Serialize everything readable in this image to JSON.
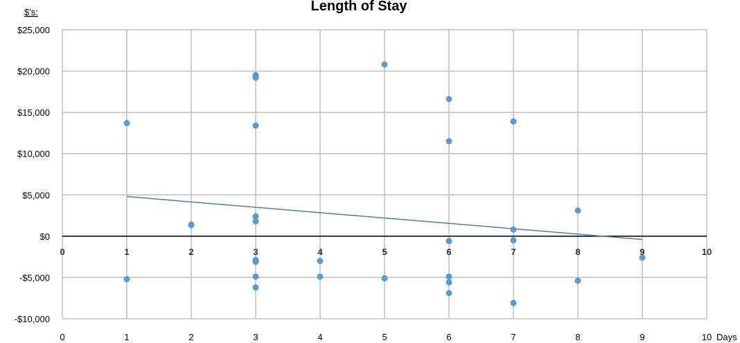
{
  "chart_data": {
    "type": "scatter",
    "title": "Length of Stay",
    "ylabel": "$'s:",
    "xlabel": "Days",
    "xlim": [
      0,
      10
    ],
    "ylim": [
      -10000,
      25000
    ],
    "x_ticks": [
      "0",
      "1",
      "2",
      "3",
      "4",
      "5",
      "6",
      "7",
      "8",
      "9",
      "10"
    ],
    "x_mid_ticks": [
      "0",
      "1",
      "2",
      "3",
      "4",
      "5",
      "6",
      "7",
      "8",
      "9",
      "10"
    ],
    "y_ticks": [
      {
        "value": 25000,
        "label": "$25,000"
      },
      {
        "value": 20000,
        "label": "$20,000"
      },
      {
        "value": 15000,
        "label": "$15,000"
      },
      {
        "value": 10000,
        "label": "$10,000"
      },
      {
        "value": 5000,
        "label": "$5,000"
      },
      {
        "value": 0,
        "label": "$0"
      },
      {
        "value": -5000,
        "label": "-$5,000"
      },
      {
        "value": -10000,
        "label": "-$10,000"
      }
    ],
    "grid": true,
    "series": [
      {
        "color": "#5b9bd5",
        "points": [
          {
            "x": 1,
            "y": 13700
          },
          {
            "x": 1,
            "y": -5200
          },
          {
            "x": 2,
            "y": 1400
          },
          {
            "x": 2,
            "y": 1350
          },
          {
            "x": 3,
            "y": 19500
          },
          {
            "x": 3,
            "y": 19200
          },
          {
            "x": 3,
            "y": 13400
          },
          {
            "x": 3,
            "y": 2400
          },
          {
            "x": 3,
            "y": 1800
          },
          {
            "x": 3,
            "y": -2900
          },
          {
            "x": 3,
            "y": -3100
          },
          {
            "x": 3,
            "y": -4900
          },
          {
            "x": 3,
            "y": -6200
          },
          {
            "x": 4,
            "y": -3000
          },
          {
            "x": 4,
            "y": -4900
          },
          {
            "x": 5,
            "y": 20800
          },
          {
            "x": 5,
            "y": -5100
          },
          {
            "x": 6,
            "y": 16600
          },
          {
            "x": 6,
            "y": 11500
          },
          {
            "x": 6,
            "y": -600
          },
          {
            "x": 6,
            "y": -4900
          },
          {
            "x": 6,
            "y": -5600
          },
          {
            "x": 6,
            "y": -6900
          },
          {
            "x": 7,
            "y": 13900
          },
          {
            "x": 7,
            "y": 800
          },
          {
            "x": 7,
            "y": -500
          },
          {
            "x": 7,
            "y": -8100
          },
          {
            "x": 8,
            "y": 3100
          },
          {
            "x": 8,
            "y": -5400
          },
          {
            "x": 9,
            "y": -2600
          }
        ]
      }
    ],
    "trendline": {
      "type": "linear",
      "color": "#4a7ea8",
      "x_range": [
        1,
        9
      ],
      "y_values": [
        4800,
        -400
      ]
    }
  }
}
